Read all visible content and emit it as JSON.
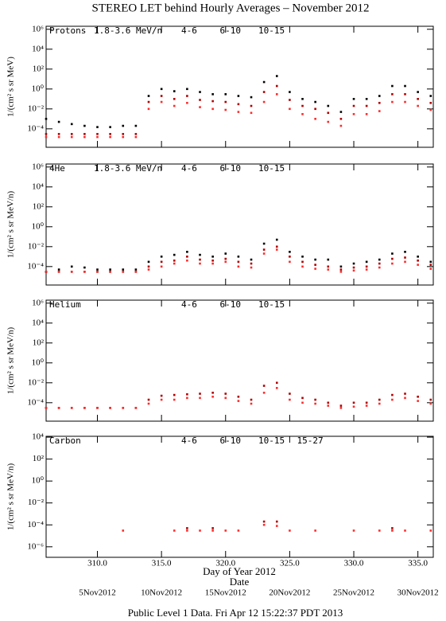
{
  "title": "STEREO LET behind Hourly Averages – November 2012",
  "xlabel": "Day of Year 2012",
  "date_label": "Date",
  "footer": "Public Level 1 Data. Fri Apr 12 15:22:37 PDT 2013",
  "xlim": [
    306,
    336.2
  ],
  "xticks": [
    {
      "value": 310,
      "label": "310.0"
    },
    {
      "value": 315,
      "label": "315.0"
    },
    {
      "value": 320,
      "label": "320.0"
    },
    {
      "value": 325,
      "label": "325.0"
    },
    {
      "value": 330,
      "label": "330.0"
    },
    {
      "value": 335,
      "label": "335.0"
    }
  ],
  "date_ticks": [
    {
      "value": 310,
      "label": "5Nov2012"
    },
    {
      "value": 315,
      "label": "10Nov2012"
    },
    {
      "value": 320,
      "label": "15Nov2012"
    },
    {
      "value": 325,
      "label": "20Nov2012"
    },
    {
      "value": 330,
      "label": "25Nov2012"
    },
    {
      "value": 335,
      "label": "30Nov2012"
    }
  ],
  "x": [
    306,
    307,
    308,
    309,
    310,
    311,
    312,
    313,
    314,
    315,
    316,
    317,
    318,
    319,
    320,
    321,
    322,
    323,
    324,
    325,
    326,
    327,
    328,
    329,
    330,
    331,
    332,
    333,
    334,
    335,
    336
  ],
  "chart_data": [
    {
      "type": "scatter",
      "label": "Protons",
      "ylabel": "1/(cm² s sr MeV)",
      "log_y": true,
      "ylim": [
        1.4e-06,
        2000000.0
      ],
      "yticks": [
        {
          "value": 0.0001,
          "label": "10⁻⁴"
        },
        {
          "value": 0.01,
          "label": "10⁻²"
        },
        {
          "value": 1,
          "label": "10⁰"
        },
        {
          "value": 100,
          "label": "10²"
        },
        {
          "value": 10000,
          "label": "10⁴"
        },
        {
          "value": 1000000,
          "label": "10⁶"
        }
      ],
      "series": [
        {
          "name": "1.8-3.6 MeV/n",
          "color": "#000000",
          "values": [
            0.001,
            0.0005,
            0.0003,
            0.0002,
            0.00015,
            0.00015,
            0.0002,
            0.0002,
            0.2,
            1,
            0.6,
            1,
            0.5,
            0.3,
            0.3,
            0.2,
            0.15,
            5,
            20,
            0.5,
            0.1,
            0.05,
            0.02,
            0.005,
            0.1,
            0.1,
            0.2,
            2,
            2,
            0.5,
            0.2
          ]
        },
        {
          "name": "4-6",
          "color": "#b00000",
          "values": [
            3e-05,
            3e-05,
            3e-05,
            3e-05,
            3e-05,
            3e-05,
            3e-05,
            3e-05,
            0.05,
            0.2,
            0.1,
            0.2,
            0.08,
            0.06,
            0.05,
            0.03,
            0.02,
            0.5,
            2,
            0.08,
            0.02,
            0.01,
            0.004,
            0.001,
            0.02,
            0.02,
            0.04,
            0.3,
            0.3,
            0.1,
            0.04
          ]
        },
        {
          "name": "6-10",
          "color": "#ff2a2a",
          "values": [
            1.5e-05,
            1.5e-05,
            1.5e-05,
            1.5e-05,
            1.5e-05,
            1.5e-05,
            1.5e-05,
            1.5e-05,
            0.01,
            0.05,
            0.02,
            0.04,
            0.015,
            0.01,
            0.008,
            0.005,
            0.004,
            0.05,
            0.3,
            0.01,
            0.003,
            0.001,
            0.0005,
            0.0002,
            0.003,
            0.003,
            0.006,
            0.05,
            0.05,
            0.02,
            0.008
          ]
        },
        {
          "name": "10-15",
          "color": "#999999",
          "values": [
            null,
            null,
            null,
            null,
            null,
            null,
            null,
            null,
            null,
            null,
            null,
            null,
            null,
            null,
            null,
            null,
            null,
            null,
            null,
            null,
            null,
            null,
            null,
            null,
            null,
            null,
            null,
            null,
            null,
            null,
            null
          ]
        }
      ]
    },
    {
      "type": "scatter",
      "label": "4He",
      "ylabel": "1/(cm² s sr MeV/n)",
      "log_y": true,
      "ylim": [
        1.4e-06,
        2000000.0
      ],
      "yticks": [
        {
          "value": 0.0001,
          "label": "10⁻⁴"
        },
        {
          "value": 0.01,
          "label": "10⁻²"
        },
        {
          "value": 1,
          "label": "10⁰"
        },
        {
          "value": 100,
          "label": "10²"
        },
        {
          "value": 10000,
          "label": "10⁴"
        },
        {
          "value": 1000000,
          "label": "10⁶"
        }
      ],
      "series": [
        {
          "name": "1.8-3.6 MeV/n",
          "color": "#000000",
          "values": [
            3e-05,
            5e-05,
            0.0001,
            8e-05,
            5e-05,
            5e-05,
            5e-05,
            5e-05,
            0.0003,
            0.001,
            0.0015,
            0.003,
            0.0015,
            0.001,
            0.002,
            0.001,
            0.0005,
            0.02,
            0.05,
            0.003,
            0.001,
            0.0005,
            0.0005,
            0.0001,
            0.0002,
            0.0003,
            0.0005,
            0.002,
            0.003,
            0.001,
            0.0003
          ]
        },
        {
          "name": "4-6",
          "color": "#b00000",
          "values": [
            3e-05,
            3e-05,
            3e-05,
            3e-05,
            3e-05,
            3e-05,
            3e-05,
            3e-05,
            0.0001,
            0.0003,
            0.0004,
            0.001,
            0.0005,
            0.0004,
            0.0006,
            0.0003,
            0.0002,
            0.005,
            0.01,
            0.001,
            0.0003,
            0.00015,
            0.0001,
            5e-05,
            8e-05,
            0.0001,
            0.0002,
            0.0006,
            0.0008,
            0.0004,
            0.00015
          ]
        },
        {
          "name": "6-10",
          "color": "#ff2a2a",
          "values": [
            3e-05,
            3e-05,
            3e-05,
            3e-05,
            3e-05,
            3e-05,
            3e-05,
            3e-05,
            5e-05,
            0.0001,
            0.0002,
            0.0004,
            0.0002,
            0.0002,
            0.0003,
            0.0001,
            8e-05,
            0.002,
            0.005,
            0.0003,
            0.0001,
            6e-05,
            5e-05,
            3e-05,
            4e-05,
            5e-05,
            8e-05,
            0.0002,
            0.0003,
            0.00015,
            6e-05
          ]
        },
        {
          "name": "10-15",
          "color": "#999999",
          "values": [
            null,
            null,
            null,
            null,
            null,
            null,
            null,
            null,
            null,
            null,
            null,
            null,
            null,
            null,
            null,
            null,
            null,
            null,
            null,
            null,
            null,
            null,
            null,
            null,
            null,
            null,
            null,
            null,
            null,
            null,
            null
          ]
        }
      ]
    },
    {
      "type": "scatter",
      "label": "Helium",
      "ylabel": "1/(cm² s sr MeV/n)",
      "log_y": true,
      "ylim": [
        1.4e-06,
        2000000.0
      ],
      "yticks": [
        {
          "value": 0.0001,
          "label": "10⁻⁴"
        },
        {
          "value": 0.01,
          "label": "10⁻²"
        },
        {
          "value": 1,
          "label": "10⁰"
        },
        {
          "value": 100,
          "label": "10²"
        },
        {
          "value": 10000,
          "label": "10⁴"
        },
        {
          "value": 1000000,
          "label": "10⁶"
        }
      ],
      "series": [
        {
          "name": "4-6",
          "color": "#b00000",
          "values": [
            3e-05,
            3e-05,
            3e-05,
            3e-05,
            3e-05,
            3e-05,
            3e-05,
            3e-05,
            0.0002,
            0.0005,
            0.0006,
            0.0007,
            0.0008,
            0.001,
            0.0008,
            0.0004,
            0.0002,
            0.005,
            0.01,
            0.0008,
            0.0003,
            0.0002,
            0.0001,
            5e-05,
            0.0001,
            0.0001,
            0.0002,
            0.0006,
            0.0008,
            0.0004,
            0.0002
          ]
        },
        {
          "name": "6-10",
          "color": "#ff2a2a",
          "values": [
            3e-05,
            3e-05,
            3e-05,
            3e-05,
            3e-05,
            3e-05,
            3e-05,
            3e-05,
            8e-05,
            0.0002,
            0.0002,
            0.0003,
            0.0003,
            0.0004,
            0.0003,
            0.00015,
            8e-05,
            0.001,
            0.003,
            0.0002,
            0.0001,
            8e-05,
            5e-05,
            3e-05,
            4e-05,
            5e-05,
            8e-05,
            0.0002,
            0.0003,
            0.00015,
            8e-05
          ]
        },
        {
          "name": "10-15",
          "color": "#999999",
          "values": [
            null,
            null,
            null,
            null,
            null,
            null,
            null,
            null,
            null,
            null,
            null,
            null,
            null,
            null,
            null,
            null,
            null,
            null,
            null,
            null,
            null,
            null,
            null,
            null,
            null,
            null,
            null,
            null,
            null,
            null,
            null
          ]
        }
      ]
    },
    {
      "type": "scatter",
      "label": "Carbon",
      "ylabel": "1/(cm² s sr MeV/n)",
      "log_y": true,
      "ylim": [
        1.1e-07,
        12000
      ],
      "yticks": [
        {
          "value": 1e-06,
          "label": "10⁻⁶"
        },
        {
          "value": 0.0001,
          "label": "10⁻⁴"
        },
        {
          "value": 0.01,
          "label": "10⁻²"
        },
        {
          "value": 1,
          "label": "10⁰"
        },
        {
          "value": 100,
          "label": "10²"
        },
        {
          "value": 10000,
          "label": "10⁴"
        }
      ],
      "series": [
        {
          "name": "4-6",
          "color": "#b00000",
          "values": [
            null,
            null,
            null,
            null,
            null,
            null,
            null,
            null,
            null,
            null,
            null,
            5e-05,
            null,
            5e-05,
            null,
            null,
            null,
            0.0002,
            0.0002,
            null,
            null,
            null,
            null,
            null,
            null,
            null,
            null,
            5e-05,
            null,
            null,
            null
          ]
        },
        {
          "name": "6-10",
          "color": "#ff2a2a",
          "values": [
            null,
            null,
            null,
            null,
            null,
            null,
            3e-05,
            null,
            null,
            null,
            3e-05,
            3e-05,
            3e-05,
            3e-05,
            3e-05,
            3e-05,
            null,
            0.0001,
            8e-05,
            3e-05,
            null,
            3e-05,
            null,
            null,
            3e-05,
            null,
            3e-05,
            3e-05,
            3e-05,
            null,
            3e-05
          ]
        },
        {
          "name": "10-15",
          "color": "#999999",
          "values": [
            null,
            null,
            null,
            null,
            null,
            null,
            null,
            null,
            null,
            null,
            null,
            null,
            null,
            null,
            null,
            null,
            null,
            null,
            null,
            null,
            null,
            null,
            null,
            null,
            null,
            null,
            null,
            null,
            null,
            null,
            null
          ]
        },
        {
          "name": "15-27",
          "color": "#0000ff",
          "values": [
            null,
            null,
            null,
            null,
            null,
            null,
            null,
            null,
            null,
            null,
            null,
            null,
            null,
            null,
            null,
            null,
            null,
            null,
            null,
            null,
            null,
            null,
            null,
            null,
            null,
            null,
            null,
            null,
            null,
            null,
            null
          ]
        }
      ]
    }
  ]
}
